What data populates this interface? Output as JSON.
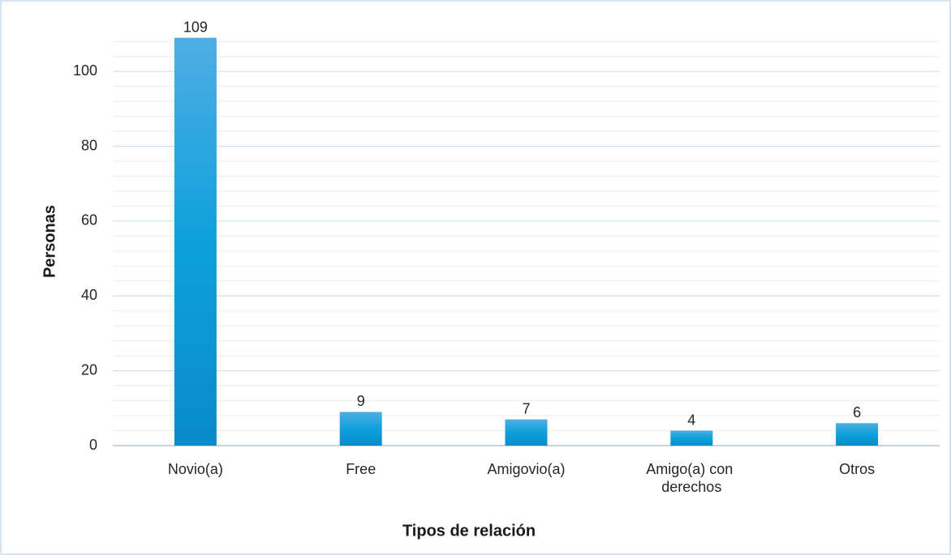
{
  "chart_data": {
    "type": "bar",
    "categories": [
      "Novio(a)",
      "Free",
      "Amigovio(a)",
      "Amigo(a) con derechos",
      "Otros"
    ],
    "values": [
      109,
      9,
      7,
      4,
      6
    ],
    "color": "#1199d6",
    "xlabel": "Tipos de relación",
    "ylabel": "Personas",
    "ylim": [
      0,
      110
    ],
    "yticks": [
      0,
      20,
      40,
      60,
      80,
      100
    ],
    "grid": true,
    "minor_grid": true
  }
}
